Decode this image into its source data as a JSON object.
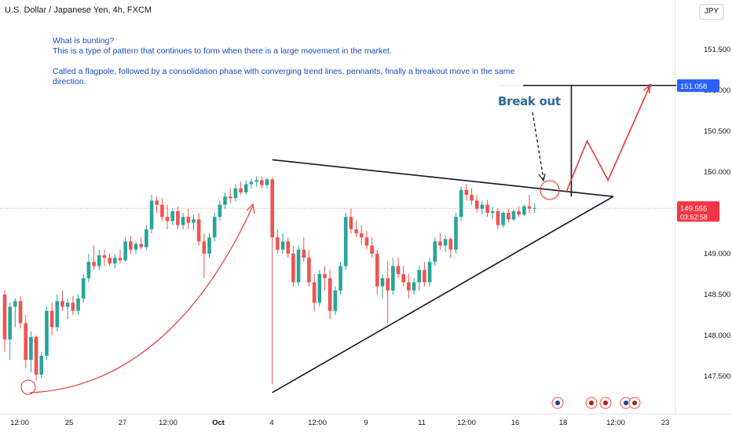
{
  "title": "U.S. Dollar / Japanese Yen, 4h, FXCM",
  "currency": "JPY",
  "annotation": {
    "line1": "What is bunting?",
    "line2": "This is a type of pattern that continues to form when there is a large movement in the market.",
    "line3": "",
    "line4": "Called a flagpole, followed by a consolidation phase with converging trend lines, pennants, finally a breakout move in the same direction."
  },
  "breakout_label": "Break out",
  "chart_data": {
    "type": "candlestick",
    "y_ticks": [
      "151.500",
      "151.000",
      "150.500",
      "150.000",
      "149.000",
      "148.500",
      "148.000",
      "147.500"
    ],
    "x_ticks": [
      "12:00",
      "25",
      "27",
      "12:00",
      "Oct",
      "4",
      "12:00",
      "9",
      "11",
      "12:00",
      "16",
      "18",
      "12:00",
      "23"
    ],
    "current_price": "149.555",
    "countdown": "03:52:58",
    "target_price": "151.058",
    "candles": [
      {
        "o": 148.5,
        "h": 148.55,
        "l": 147.8,
        "c": 147.95
      },
      {
        "o": 147.95,
        "h": 148.4,
        "l": 147.7,
        "c": 148.35
      },
      {
        "o": 148.35,
        "h": 148.45,
        "l": 148.1,
        "c": 148.42
      },
      {
        "o": 148.42,
        "h": 148.48,
        "l": 148.08,
        "c": 148.15
      },
      {
        "o": 148.15,
        "h": 148.25,
        "l": 147.6,
        "c": 147.7
      },
      {
        "o": 147.7,
        "h": 148.05,
        "l": 147.55,
        "c": 147.98
      },
      {
        "o": 147.98,
        "h": 148.0,
        "l": 147.45,
        "c": 147.52
      },
      {
        "o": 147.52,
        "h": 147.8,
        "l": 147.48,
        "c": 147.75
      },
      {
        "o": 147.75,
        "h": 148.35,
        "l": 147.7,
        "c": 148.3
      },
      {
        "o": 148.3,
        "h": 148.4,
        "l": 148.0,
        "c": 148.1
      },
      {
        "o": 148.1,
        "h": 148.5,
        "l": 148.05,
        "c": 148.42
      },
      {
        "o": 148.42,
        "h": 148.55,
        "l": 148.3,
        "c": 148.35
      },
      {
        "o": 148.35,
        "h": 148.45,
        "l": 148.2,
        "c": 148.4
      },
      {
        "o": 148.4,
        "h": 148.48,
        "l": 148.25,
        "c": 148.3
      },
      {
        "o": 148.3,
        "h": 148.5,
        "l": 148.25,
        "c": 148.45
      },
      {
        "o": 148.45,
        "h": 148.75,
        "l": 148.4,
        "c": 148.7
      },
      {
        "o": 148.7,
        "h": 149.0,
        "l": 148.65,
        "c": 148.9
      },
      {
        "o": 148.9,
        "h": 149.1,
        "l": 148.8,
        "c": 148.85
      },
      {
        "o": 148.85,
        "h": 149.05,
        "l": 148.8,
        "c": 148.98
      },
      {
        "o": 148.98,
        "h": 149.05,
        "l": 148.85,
        "c": 148.95
      },
      {
        "o": 148.95,
        "h": 149.0,
        "l": 148.85,
        "c": 148.88
      },
      {
        "o": 148.88,
        "h": 149.0,
        "l": 148.82,
        "c": 148.95
      },
      {
        "o": 148.95,
        "h": 149.05,
        "l": 148.88,
        "c": 148.92
      },
      {
        "o": 148.92,
        "h": 149.2,
        "l": 148.9,
        "c": 149.15
      },
      {
        "o": 149.15,
        "h": 149.22,
        "l": 149.0,
        "c": 149.05
      },
      {
        "o": 149.05,
        "h": 149.15,
        "l": 149.0,
        "c": 149.12
      },
      {
        "o": 149.12,
        "h": 149.2,
        "l": 149.05,
        "c": 149.08
      },
      {
        "o": 149.08,
        "h": 149.35,
        "l": 149.05,
        "c": 149.3
      },
      {
        "o": 149.3,
        "h": 149.72,
        "l": 149.25,
        "c": 149.65
      },
      {
        "o": 149.65,
        "h": 149.7,
        "l": 149.5,
        "c": 149.6
      },
      {
        "o": 149.6,
        "h": 149.68,
        "l": 149.4,
        "c": 149.45
      },
      {
        "o": 149.45,
        "h": 149.6,
        "l": 149.3,
        "c": 149.4
      },
      {
        "o": 149.4,
        "h": 149.55,
        "l": 149.35,
        "c": 149.52
      },
      {
        "o": 149.52,
        "h": 149.58,
        "l": 149.3,
        "c": 149.35
      },
      {
        "o": 149.35,
        "h": 149.5,
        "l": 149.3,
        "c": 149.45
      },
      {
        "o": 149.45,
        "h": 149.55,
        "l": 149.3,
        "c": 149.38
      },
      {
        "o": 149.38,
        "h": 149.48,
        "l": 149.28,
        "c": 149.42
      },
      {
        "o": 149.42,
        "h": 149.5,
        "l": 149.1,
        "c": 149.15
      },
      {
        "o": 149.15,
        "h": 149.25,
        "l": 148.7,
        "c": 149.0
      },
      {
        "o": 149.0,
        "h": 149.25,
        "l": 148.95,
        "c": 149.2
      },
      {
        "o": 149.2,
        "h": 149.5,
        "l": 149.15,
        "c": 149.45
      },
      {
        "o": 149.45,
        "h": 149.65,
        "l": 149.4,
        "c": 149.6
      },
      {
        "o": 149.6,
        "h": 149.75,
        "l": 149.55,
        "c": 149.7
      },
      {
        "o": 149.7,
        "h": 149.8,
        "l": 149.62,
        "c": 149.68
      },
      {
        "o": 149.68,
        "h": 149.85,
        "l": 149.64,
        "c": 149.8
      },
      {
        "o": 149.8,
        "h": 149.88,
        "l": 149.72,
        "c": 149.75
      },
      {
        "o": 149.75,
        "h": 149.9,
        "l": 149.72,
        "c": 149.85
      },
      {
        "o": 149.85,
        "h": 149.92,
        "l": 149.8,
        "c": 149.88
      },
      {
        "o": 149.88,
        "h": 149.95,
        "l": 149.82,
        "c": 149.9
      },
      {
        "o": 149.9,
        "h": 149.95,
        "l": 149.8,
        "c": 149.84
      },
      {
        "o": 149.84,
        "h": 149.93,
        "l": 149.8,
        "c": 149.91
      },
      {
        "o": 149.91,
        "h": 149.94,
        "l": 147.4,
        "c": 149.2
      },
      {
        "o": 149.2,
        "h": 149.3,
        "l": 149.0,
        "c": 149.05
      },
      {
        "o": 149.05,
        "h": 149.25,
        "l": 149.0,
        "c": 149.15
      },
      {
        "o": 149.15,
        "h": 149.2,
        "l": 148.95,
        "c": 149.0
      },
      {
        "o": 149.0,
        "h": 149.1,
        "l": 148.6,
        "c": 148.65
      },
      {
        "o": 148.65,
        "h": 149.1,
        "l": 148.6,
        "c": 149.05
      },
      {
        "o": 149.05,
        "h": 149.2,
        "l": 148.9,
        "c": 148.95
      },
      {
        "o": 148.95,
        "h": 149.05,
        "l": 148.6,
        "c": 148.65
      },
      {
        "o": 148.65,
        "h": 148.75,
        "l": 148.3,
        "c": 148.4
      },
      {
        "o": 148.4,
        "h": 148.8,
        "l": 148.35,
        "c": 148.75
      },
      {
        "o": 148.75,
        "h": 148.85,
        "l": 148.55,
        "c": 148.7
      },
      {
        "o": 148.7,
        "h": 148.8,
        "l": 148.2,
        "c": 148.3
      },
      {
        "o": 148.3,
        "h": 148.6,
        "l": 148.25,
        "c": 148.55
      },
      {
        "o": 148.55,
        "h": 148.9,
        "l": 148.5,
        "c": 148.85
      },
      {
        "o": 148.85,
        "h": 149.5,
        "l": 148.8,
        "c": 149.45
      },
      {
        "o": 149.45,
        "h": 149.55,
        "l": 149.25,
        "c": 149.3
      },
      {
        "o": 149.3,
        "h": 149.4,
        "l": 149.2,
        "c": 149.25
      },
      {
        "o": 149.25,
        "h": 149.35,
        "l": 149.1,
        "c": 149.2
      },
      {
        "o": 149.2,
        "h": 149.28,
        "l": 149.05,
        "c": 149.1
      },
      {
        "o": 149.1,
        "h": 149.2,
        "l": 148.95,
        "c": 149.0
      },
      {
        "o": 149.0,
        "h": 149.05,
        "l": 148.5,
        "c": 148.6
      },
      {
        "o": 148.6,
        "h": 148.75,
        "l": 148.45,
        "c": 148.7
      },
      {
        "o": 148.7,
        "h": 148.9,
        "l": 148.15,
        "c": 148.55
      },
      {
        "o": 148.55,
        "h": 148.95,
        "l": 148.5,
        "c": 148.85
      },
      {
        "o": 148.85,
        "h": 148.95,
        "l": 148.7,
        "c": 148.75
      },
      {
        "o": 148.75,
        "h": 148.85,
        "l": 148.6,
        "c": 148.65
      },
      {
        "o": 148.65,
        "h": 148.75,
        "l": 148.45,
        "c": 148.55
      },
      {
        "o": 148.55,
        "h": 148.7,
        "l": 148.5,
        "c": 148.65
      },
      {
        "o": 148.65,
        "h": 148.85,
        "l": 148.55,
        "c": 148.8
      },
      {
        "o": 148.8,
        "h": 148.9,
        "l": 148.6,
        "c": 148.65
      },
      {
        "o": 148.65,
        "h": 148.95,
        "l": 148.6,
        "c": 148.9
      },
      {
        "o": 148.9,
        "h": 149.2,
        "l": 148.85,
        "c": 149.15
      },
      {
        "o": 149.15,
        "h": 149.25,
        "l": 149.05,
        "c": 149.1
      },
      {
        "o": 149.1,
        "h": 149.22,
        "l": 149.02,
        "c": 149.18
      },
      {
        "o": 149.18,
        "h": 149.2,
        "l": 148.95,
        "c": 149.05
      },
      {
        "o": 149.05,
        "h": 149.5,
        "l": 149.0,
        "c": 149.45
      },
      {
        "o": 149.45,
        "h": 149.82,
        "l": 149.4,
        "c": 149.78
      },
      {
        "o": 149.78,
        "h": 149.85,
        "l": 149.65,
        "c": 149.72
      },
      {
        "o": 149.72,
        "h": 149.8,
        "l": 149.6,
        "c": 149.65
      },
      {
        "o": 149.65,
        "h": 149.72,
        "l": 149.5,
        "c": 149.55
      },
      {
        "o": 149.55,
        "h": 149.65,
        "l": 149.48,
        "c": 149.6
      },
      {
        "o": 149.6,
        "h": 149.66,
        "l": 149.45,
        "c": 149.5
      },
      {
        "o": 149.5,
        "h": 149.58,
        "l": 149.42,
        "c": 149.52
      },
      {
        "o": 149.52,
        "h": 149.56,
        "l": 149.3,
        "c": 149.35
      },
      {
        "o": 149.35,
        "h": 149.52,
        "l": 149.32,
        "c": 149.5
      },
      {
        "o": 149.5,
        "h": 149.55,
        "l": 149.38,
        "c": 149.42
      },
      {
        "o": 149.42,
        "h": 149.54,
        "l": 149.4,
        "c": 149.52
      },
      {
        "o": 149.52,
        "h": 149.58,
        "l": 149.45,
        "c": 149.48
      },
      {
        "o": 149.48,
        "h": 149.6,
        "l": 149.46,
        "c": 149.58
      },
      {
        "o": 149.58,
        "h": 149.72,
        "l": 149.5,
        "c": 149.55
      },
      {
        "o": 149.55,
        "h": 149.62,
        "l": 149.5,
        "c": 149.56
      }
    ],
    "trendlines": [
      {
        "role": "upper",
        "from": [
          51,
          150.15
        ],
        "to": [
          116,
          149.7
        ]
      },
      {
        "role": "lower",
        "from": [
          51,
          147.3
        ],
        "to": [
          116,
          149.7
        ]
      },
      {
        "role": "target-level",
        "from": [
          94,
          151.06
        ],
        "to": [
          128,
          151.06
        ]
      },
      {
        "role": "flagpole",
        "from": [
          108,
          151.06
        ],
        "to": [
          108,
          149.7
        ]
      }
    ],
    "projection": [
      [
        107,
        149.75
      ],
      [
        111,
        150.38
      ],
      [
        115,
        149.9
      ],
      [
        123,
        151.06
      ]
    ],
    "colors": {
      "up": "#26a69a",
      "down": "#ef5350",
      "arrow": "#e53935",
      "price_badge": "#f23645",
      "target_badge": "#2962ff"
    }
  }
}
